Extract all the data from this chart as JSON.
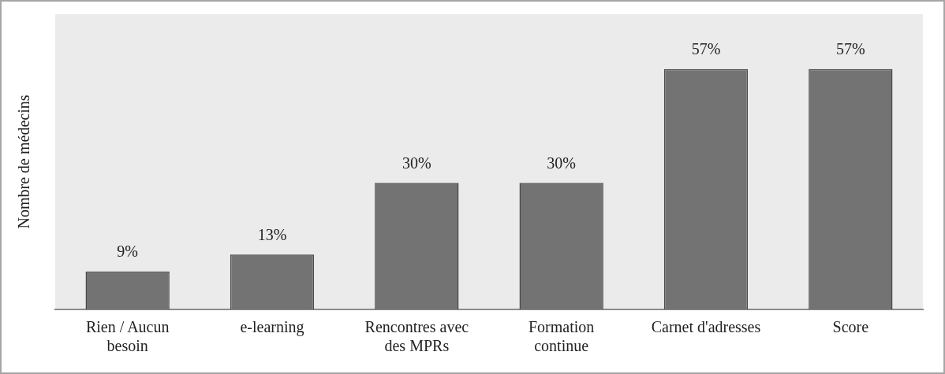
{
  "chart_data": {
    "type": "bar",
    "ylabel": "Nombre de médecins",
    "categories": [
      "Rien / Aucun besoin",
      "e-learning",
      "Rencontres avec des MPRs",
      "Formation continue",
      "Carnet d'adresses",
      "Score"
    ],
    "values": [
      9,
      13,
      30,
      30,
      57,
      57
    ],
    "value_labels": [
      "9%",
      "13%",
      "30%",
      "30%",
      "57%",
      "57%"
    ],
    "color": "#737373",
    "ylim": [
      0,
      70
    ],
    "grid": false,
    "legend": false
  }
}
